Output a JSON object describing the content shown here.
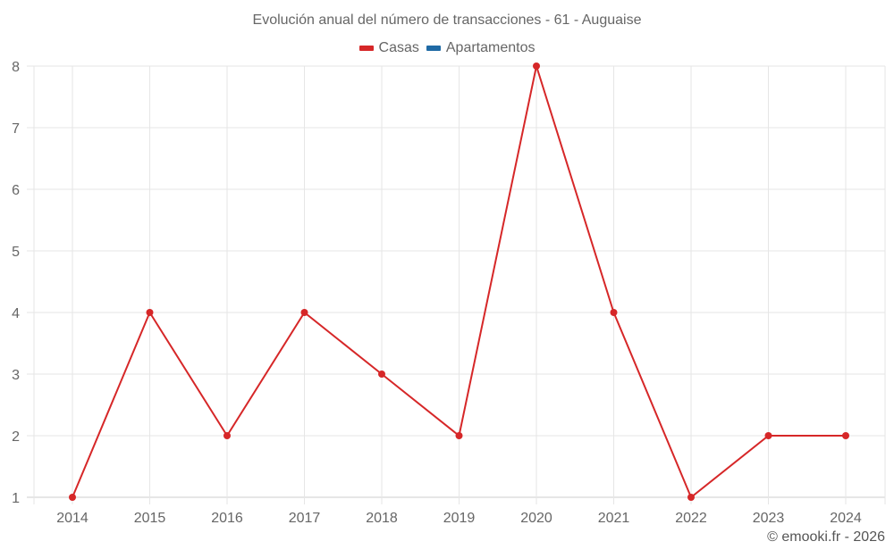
{
  "chart_data": {
    "type": "line",
    "title": "Evolución anual del número de transacciones - 61 - Auguaise",
    "xlabel": "",
    "ylabel": "",
    "categories": [
      "2014",
      "2015",
      "2016",
      "2017",
      "2018",
      "2019",
      "2020",
      "2021",
      "2022",
      "2023",
      "2024"
    ],
    "series": [
      {
        "name": "Casas",
        "color": "#d62728",
        "values": [
          1,
          4,
          2,
          4,
          3,
          2,
          8,
          4,
          1,
          2,
          2
        ]
      },
      {
        "name": "Apartamentos",
        "color": "#1f6aa5",
        "values": []
      }
    ],
    "ylim": [
      1,
      8
    ],
    "yticks": [
      1,
      2,
      3,
      4,
      5,
      6,
      7,
      8
    ],
    "grid": true,
    "legend_position": "top"
  },
  "title": "Evolución anual del número de transacciones - 61 - Auguaise",
  "legend": [
    {
      "label": "Casas",
      "color": "#d62728"
    },
    {
      "label": "Apartamentos",
      "color": "#1f6aa5"
    }
  ],
  "credit": "© emooki.fr - 2026"
}
